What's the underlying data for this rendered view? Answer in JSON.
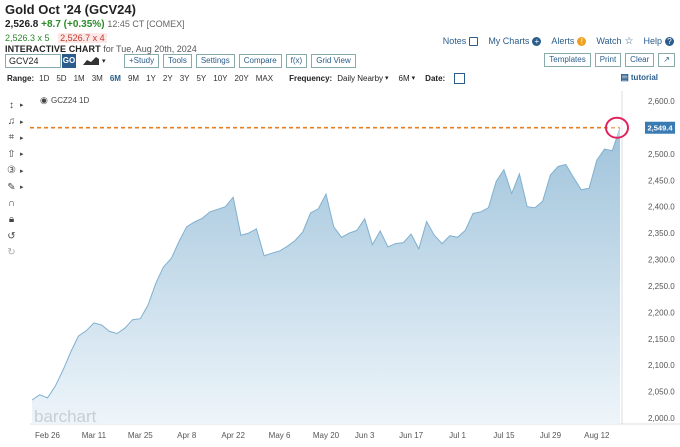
{
  "header": {
    "title": "Gold Oct '24 (GCV24)",
    "last_price": "2,526.8",
    "change": "+8.7 (+0.35%)",
    "time": "12:45 CT [COMEX]",
    "bid": "2,526.3 x 5",
    "ask": "2,526.7 x 4",
    "chart_label": "INTERACTIVE CHART",
    "chart_date": "for Tue, Aug 20th, 2024"
  },
  "top_links": {
    "notes": "Notes",
    "my_charts": "My Charts",
    "alerts": "Alerts",
    "watch": "Watch",
    "help": "Help"
  },
  "toolbar": {
    "symbol_value": "GCV24",
    "go": "GO",
    "study": "+Study",
    "tools": "Tools",
    "settings": "Settings",
    "compare": "Compare",
    "fx": "f(x)",
    "grid_view": "Grid View",
    "templates": "Templates",
    "print": "Print",
    "clear": "Clear",
    "expand": "↗"
  },
  "range_bar": {
    "range_label": "Range:",
    "ranges": [
      "1D",
      "5D",
      "1M",
      "3M",
      "6M",
      "9M",
      "1Y",
      "2Y",
      "3Y",
      "5Y",
      "10Y",
      "20Y",
      "MAX"
    ],
    "selected_range": "6M",
    "frequency_label": "Frequency:",
    "frequency_value": "Daily Nearby",
    "period_value": "6M",
    "date_label": "Date:",
    "tutorial": "tutorial"
  },
  "side_tools": [
    "crosshair-tool-icon",
    "drawing-tool-icon",
    "shape-tool-icon",
    "arrow-tool-icon",
    "number-tool-icon",
    "measure-tool-icon",
    "magnet-icon",
    "lock-icon",
    "undo-icon",
    "redo-icon"
  ],
  "chart_data": {
    "type": "area",
    "legend": "GCZ24 1D",
    "watermark": "barchart",
    "last_value_label": "2,549.4",
    "x_tick_labels": [
      "Feb 26",
      "Mar 11",
      "Mar 25",
      "Apr 8",
      "Apr 22",
      "May 6",
      "May 20",
      "Jun 3",
      "Jun 17",
      "Jul 1",
      "Jul 15",
      "Jul 29",
      "Aug 12"
    ],
    "y_tick_labels": [
      "2,600.0",
      "2,550.0",
      "2,500.0",
      "2,450.0",
      "2,400.0",
      "2,350.0",
      "2,300.0",
      "2,250.0",
      "2,200.0",
      "2,150.0",
      "2,100.0",
      "2,050.0",
      "2,000.0"
    ],
    "ylim": [
      2000,
      2600
    ],
    "x": [
      "Feb 20",
      "Feb 23",
      "Feb 26",
      "Feb 29",
      "Mar 1",
      "Mar 4",
      "Mar 6",
      "Mar 8",
      "Mar 11",
      "Mar 13",
      "Mar 15",
      "Mar 18",
      "Mar 20",
      "Mar 21",
      "Mar 25",
      "Mar 27",
      "Mar 28",
      "Apr 1",
      "Apr 3",
      "Apr 5",
      "Apr 8",
      "Apr 10",
      "Apr 12",
      "Apr 15",
      "Apr 17",
      "Apr 19",
      "Apr 22",
      "Apr 23",
      "Apr 25",
      "Apr 29",
      "May 1",
      "May 3",
      "May 6",
      "May 8",
      "May 10",
      "May 13",
      "May 15",
      "May 17",
      "May 20",
      "May 22",
      "May 24",
      "May 28",
      "May 30",
      "Jun 3",
      "Jun 5",
      "Jun 7",
      "Jun 10",
      "Jun 12",
      "Jun 14",
      "Jun 17",
      "Jun 19",
      "Jun 21",
      "Jun 24",
      "Jun 26",
      "Jun 28",
      "Jul 1",
      "Jul 3",
      "Jul 5",
      "Jul 8",
      "Jul 10",
      "Jul 12",
      "Jul 15",
      "Jul 17",
      "Jul 19",
      "Jul 22",
      "Jul 24",
      "Jul 26",
      "Jul 29",
      "Jul 31",
      "Aug 2",
      "Aug 5",
      "Aug 7",
      "Aug 9",
      "Aug 12",
      "Aug 14",
      "Aug 16",
      "Aug 20"
    ],
    "values": [
      2034,
      2044,
      2038,
      2060,
      2090,
      2125,
      2155,
      2165,
      2180,
      2176,
      2164,
      2160,
      2170,
      2186,
      2188,
      2214,
      2255,
      2286,
      2302,
      2334,
      2362,
      2371,
      2378,
      2390,
      2395,
      2400,
      2418,
      2346,
      2350,
      2358,
      2307,
      2312,
      2316,
      2325,
      2336,
      2352,
      2388,
      2396,
      2424,
      2362,
      2342,
      2350,
      2355,
      2377,
      2328,
      2354,
      2324,
      2330,
      2332,
      2348,
      2320,
      2372,
      2346,
      2330,
      2345,
      2342,
      2355,
      2387,
      2390,
      2398,
      2448,
      2470,
      2425,
      2462,
      2400,
      2398,
      2410,
      2460,
      2476,
      2480,
      2455,
      2432,
      2435,
      2488,
      2509,
      2506,
      2549.4
    ],
    "reference_line": 2549.4,
    "colors": {
      "area_top": "#9fc3db",
      "area_bottom": "#eef5fa",
      "line": "#7fb0d0",
      "ref_line": "#e67e22",
      "price_tag": "#3b7bb3",
      "marker_ring": "#e0245e"
    }
  }
}
